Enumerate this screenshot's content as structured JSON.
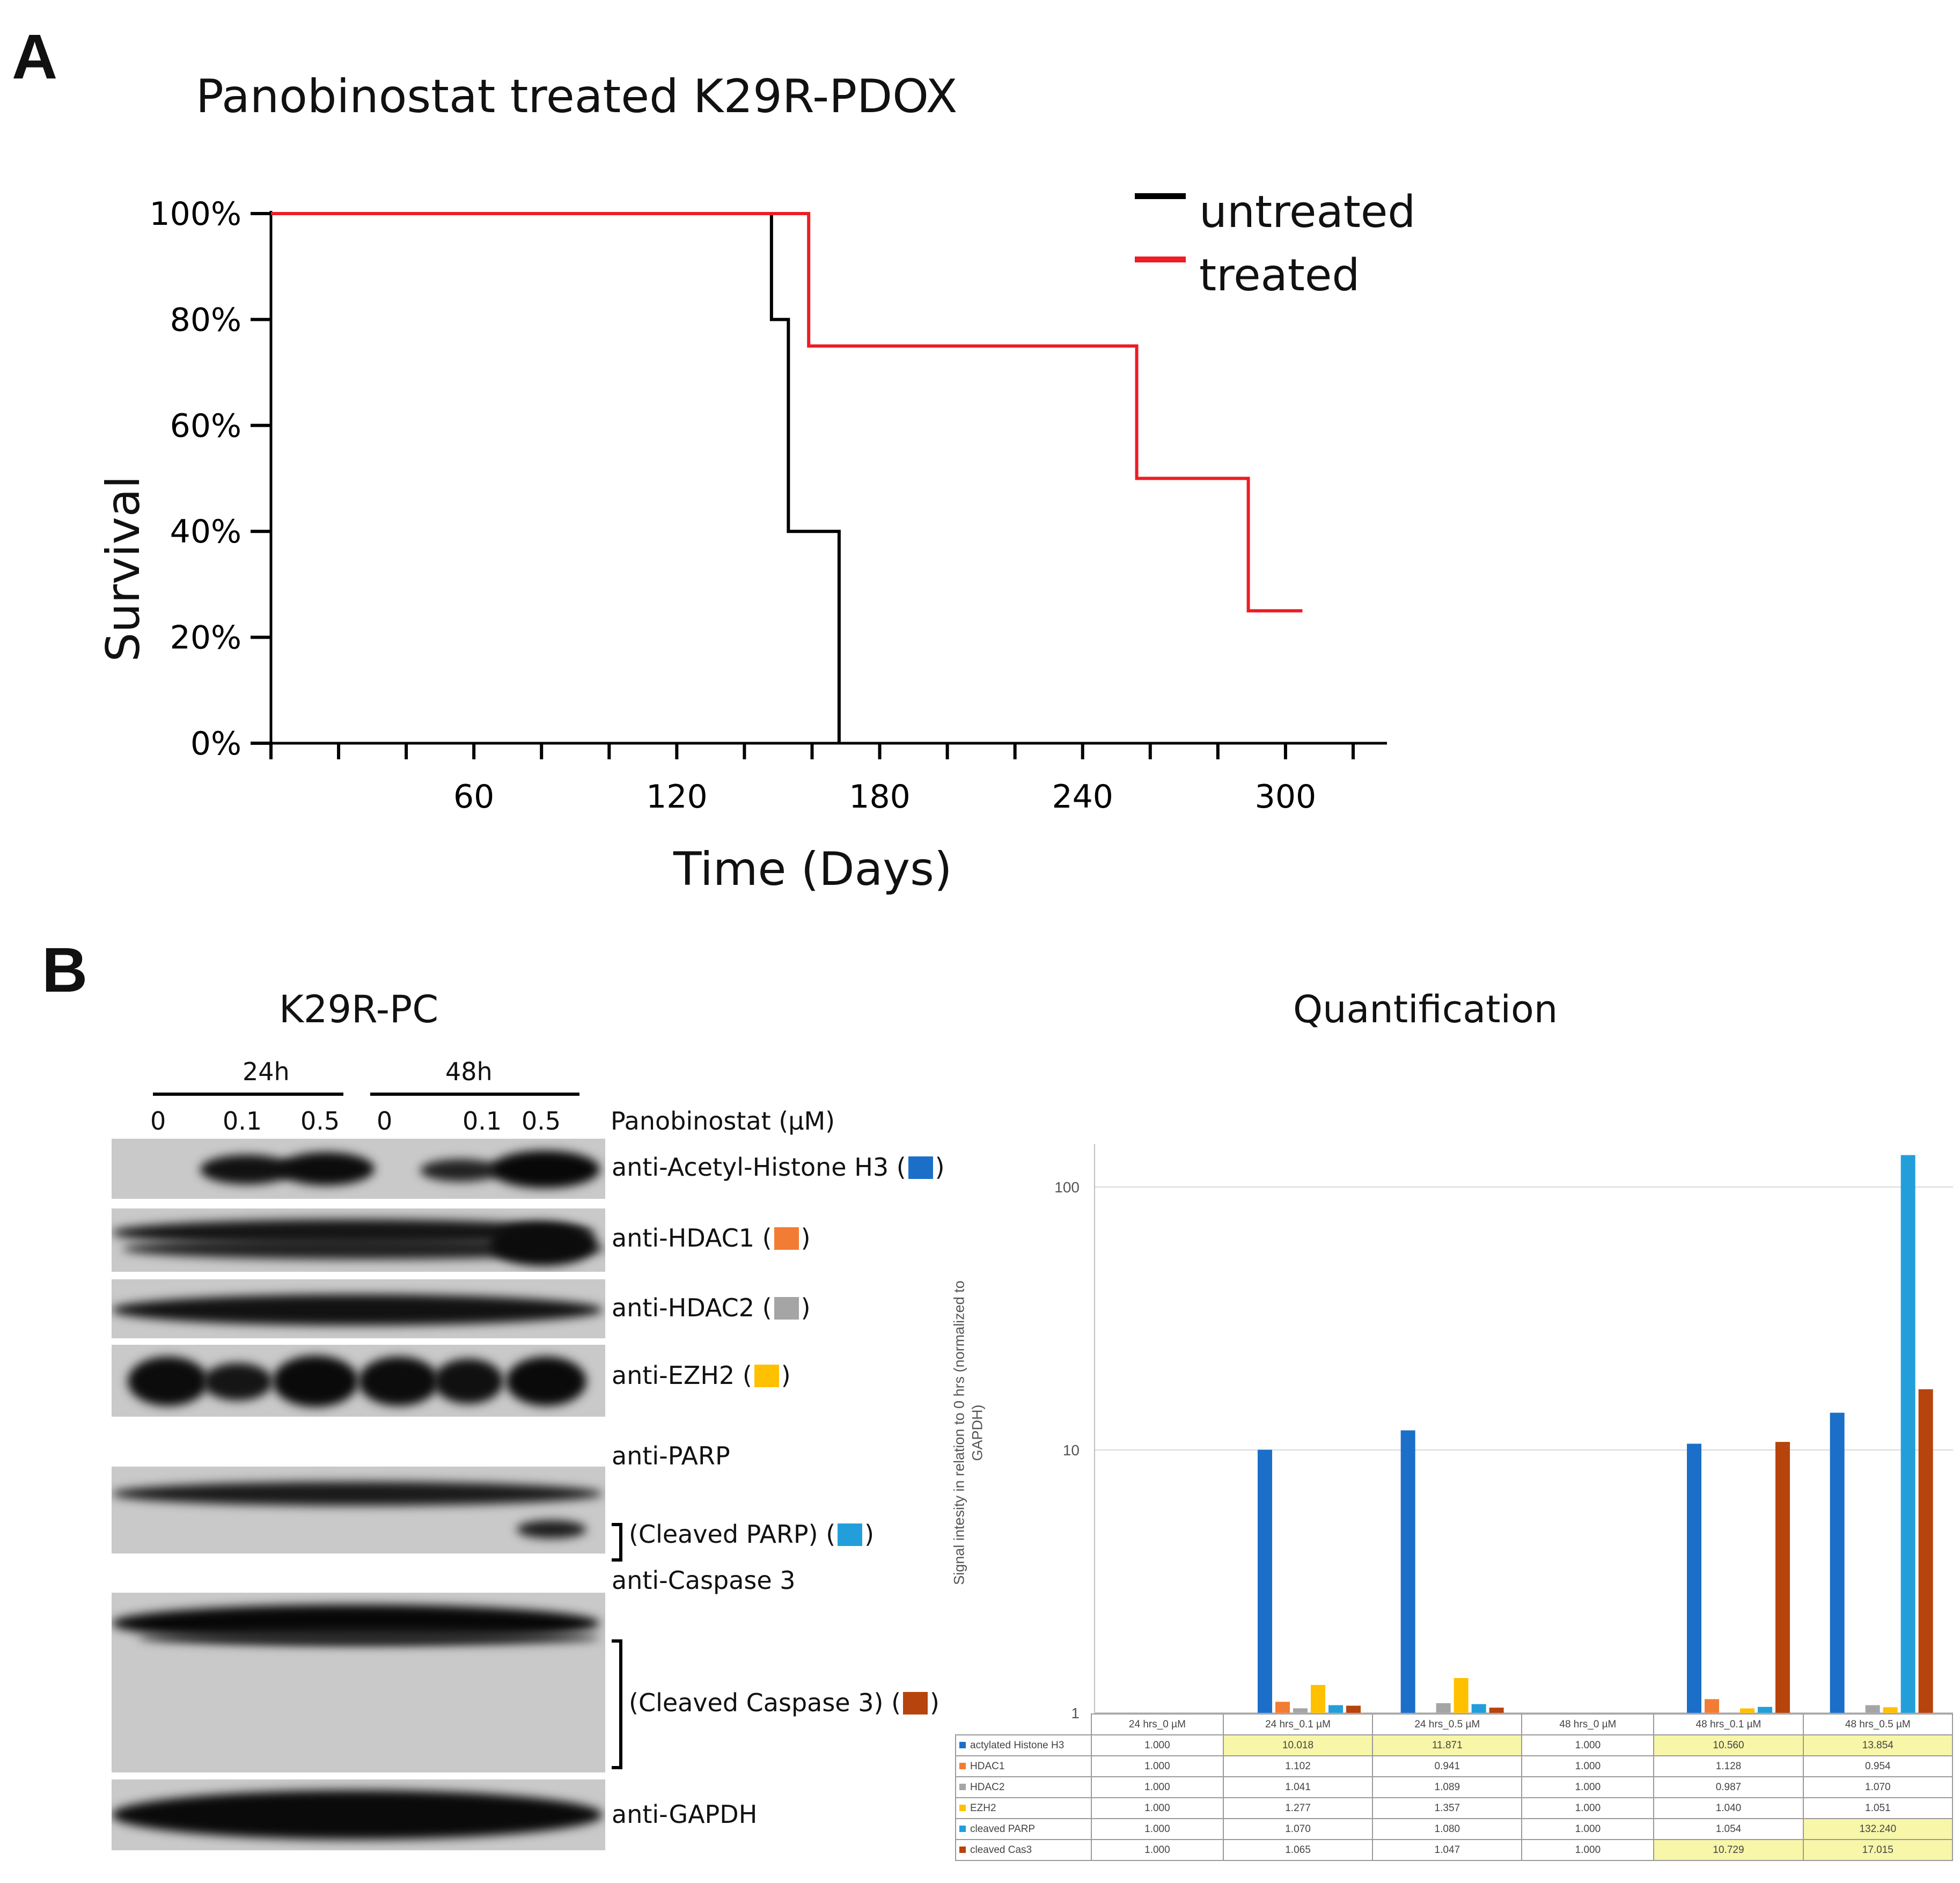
{
  "panelA": {
    "letter": "A",
    "chart_data": {
      "type": "line",
      "title": "Panobinostat treated K29R-PDOX",
      "xlabel": "Time (Days)",
      "ylabel": "Survival",
      "x_ticks": [
        "60",
        "120",
        "180",
        "240",
        "300"
      ],
      "y_ticks": [
        "0%",
        "20%",
        "40%",
        "60%",
        "80%",
        "100%"
      ],
      "xlim": [
        0,
        330
      ],
      "ylim": [
        0,
        100
      ],
      "step": true,
      "legend_position": "top-right",
      "series": [
        {
          "name": "untreated",
          "color": "#000000",
          "x": [
            0,
            148,
            148,
            153,
            153,
            168,
            168
          ],
          "y": [
            100,
            100,
            80,
            80,
            40,
            40,
            0
          ]
        },
        {
          "name": "treated",
          "color": "#ee1c24",
          "x": [
            0,
            159,
            159,
            256,
            256,
            289,
            289,
            305
          ],
          "y": [
            100,
            100,
            75,
            75,
            50,
            50,
            25,
            25
          ]
        }
      ]
    }
  },
  "panelB": {
    "letter": "B",
    "blot_title": "K29R-PC",
    "time_labels": [
      "24h",
      "48h"
    ],
    "conc_labels": [
      "0",
      "0.1",
      "0.5",
      "0",
      "0.1",
      "0.5"
    ],
    "treatment_label": "Panobinostat (µM)",
    "antibodies": [
      {
        "label": "anti-Acetyl-Histone H3 (",
        "close": ")",
        "color": "#1b6fc8"
      },
      {
        "label": "anti-HDAC1 (",
        "close": ")",
        "color": "#f27c33"
      },
      {
        "label": "anti-HDAC2 (",
        "close": ")",
        "color": "#a5a5a5"
      },
      {
        "label": "anti-EZH2 (",
        "close": ")",
        "color": "#ffc000"
      },
      {
        "label": "anti-PARP",
        "close": "",
        "color": ""
      },
      {
        "label": "(Cleaved PARP) (",
        "close": ")",
        "color": "#229fdb"
      },
      {
        "label": "anti-Caspase 3",
        "close": "",
        "color": ""
      },
      {
        "label": "(Cleaved Caspase 3) (",
        "close": ")",
        "color": "#b7440d"
      },
      {
        "label": "anti-GAPDH",
        "close": "",
        "color": ""
      }
    ],
    "quant_title": "Quantification",
    "chart_data": {
      "type": "bar",
      "log_scale": true,
      "ylabel": "Signal intesity in relation to 0 hrs (normalized to GAPDH)",
      "y_ticks": [
        "1",
        "10",
        "100"
      ],
      "ylim": [
        1,
        160
      ],
      "categories": [
        "24 hrs_0 µM",
        "24 hrs_0.1 µM",
        "24 hrs_0.5 µM",
        "48 hrs_0 µM",
        "48 hrs_0.1 µM",
        "48 hrs_0.5 µM"
      ],
      "series": [
        {
          "name": "actylated Histone H3",
          "color": "#1b6fc8",
          "values": [
            1.0,
            10.018,
            11.871,
            1.0,
            10.56,
            13.854
          ],
          "display": [
            "1.000",
            "10.018",
            "11.871",
            "1.000",
            "10.560",
            "13.854"
          ],
          "highlight": [
            false,
            true,
            true,
            false,
            true,
            true
          ]
        },
        {
          "name": "HDAC1",
          "color": "#f27c33",
          "values": [
            1.0,
            1.102,
            0.941,
            1.0,
            1.128,
            0.954
          ],
          "display": [
            "1.000",
            "1.102",
            "0.941",
            "1.000",
            "1.128",
            "0.954"
          ],
          "highlight": [
            false,
            false,
            false,
            false,
            false,
            false
          ]
        },
        {
          "name": "HDAC2",
          "color": "#a5a5a5",
          "values": [
            1.0,
            1.041,
            1.089,
            1.0,
            0.987,
            1.07
          ],
          "display": [
            "1.000",
            "1.041",
            "1.089",
            "1.000",
            "0.987",
            "1.070"
          ],
          "highlight": [
            false,
            false,
            false,
            false,
            false,
            false
          ]
        },
        {
          "name": "EZH2",
          "color": "#ffc000",
          "values": [
            1.0,
            1.277,
            1.357,
            1.0,
            1.04,
            1.051
          ],
          "display": [
            "1.000",
            "1.277",
            "1.357",
            "1.000",
            "1.040",
            "1.051"
          ],
          "highlight": [
            false,
            false,
            false,
            false,
            false,
            false
          ]
        },
        {
          "name": "cleaved PARP",
          "color": "#229fdb",
          "values": [
            1.0,
            1.07,
            1.08,
            1.0,
            1.054,
            132.24
          ],
          "display": [
            "1.000",
            "1.070",
            "1.080",
            "1.000",
            "1.054",
            "132.240"
          ],
          "highlight": [
            false,
            false,
            false,
            false,
            false,
            true
          ]
        },
        {
          "name": "cleaved Cas3",
          "color": "#b7440d",
          "values": [
            1.0,
            1.065,
            1.047,
            1.0,
            10.729,
            17.015
          ],
          "display": [
            "1.000",
            "1.065",
            "1.047",
            "1.000",
            "10.729",
            "17.015"
          ],
          "highlight": [
            false,
            false,
            false,
            false,
            true,
            true
          ]
        }
      ]
    }
  }
}
